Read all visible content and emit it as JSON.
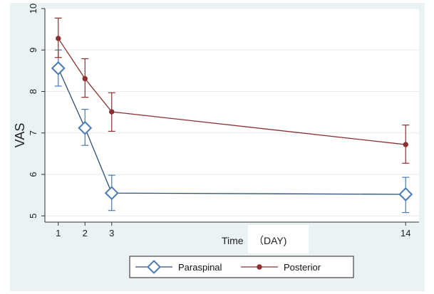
{
  "chart_data": {
    "type": "line",
    "ylabel": "VAS",
    "xlabel": "Time",
    "xlabel_unit": "（DAY)",
    "x": [
      1,
      2,
      3,
      14
    ],
    "x_tick_labels": [
      "1",
      "2",
      "3",
      "14"
    ],
    "y_ticks": [
      5,
      6,
      7,
      8,
      9,
      10
    ],
    "y_tick_labels": [
      "5",
      "6",
      "7",
      "8",
      "9",
      "10"
    ],
    "ylim": [
      4.85,
      10
    ],
    "xlim": [
      0.5,
      14.5
    ],
    "grid": true,
    "legend_position": "bottom",
    "series": [
      {
        "name": "Paraspinal",
        "marker": "hollow-diamond",
        "color": "#4a79b6",
        "line_color": "#2f4f6f",
        "values": [
          8.56,
          7.12,
          5.55,
          5.52
        ],
        "err_upper": [
          9.0,
          7.57,
          5.98,
          5.93
        ],
        "err_lower": [
          8.13,
          6.7,
          5.13,
          5.08
        ]
      },
      {
        "name": "Posterior",
        "marker": "filled-circle",
        "color": "#8b2f2f",
        "line_color": "#8b2f2f",
        "values": [
          9.28,
          8.31,
          7.51,
          6.72
        ],
        "err_upper": [
          9.77,
          8.79,
          7.97,
          7.19
        ],
        "err_lower": [
          8.82,
          7.86,
          7.04,
          6.27
        ]
      }
    ]
  }
}
